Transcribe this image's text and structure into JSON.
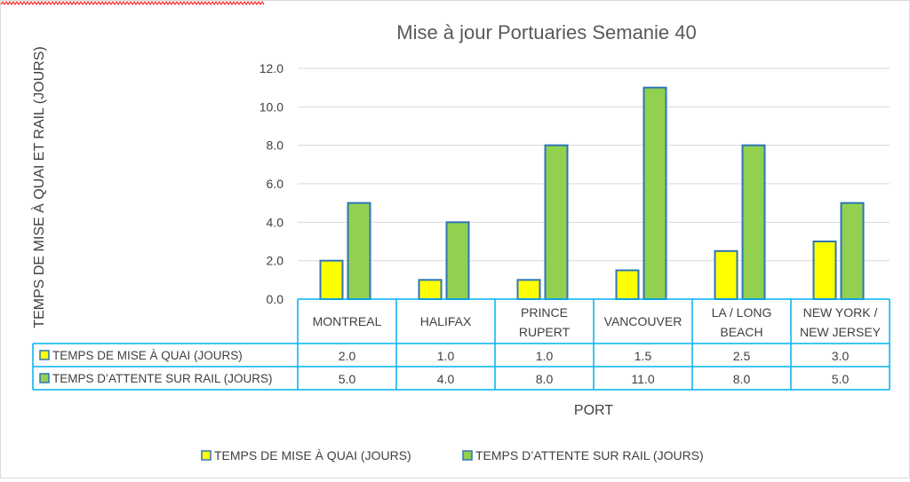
{
  "chart_data": {
    "type": "bar",
    "title": "Mise à jour Portuaries Semanie 40",
    "xlabel": "PORT",
    "ylabel": "TEMPS DE MISE À QUAI ET RAIL (JOURS)",
    "ylim": [
      0,
      12
    ],
    "ytick_labels": [
      "0.0",
      "2.0",
      "4.0",
      "6.0",
      "8.0",
      "10.0",
      "12.0"
    ],
    "categories": [
      [
        "MONTREAL"
      ],
      [
        "HALIFAX"
      ],
      [
        "PRINCE",
        "RUPERT"
      ],
      [
        "VANCOUVER"
      ],
      [
        "LA / LONG",
        "BEACH"
      ],
      [
        "NEW YORK /",
        "NEW JERSEY"
      ]
    ],
    "series": [
      {
        "name": "TEMPS DE MISE À QUAI (JOURS)",
        "color": "#ffff00",
        "values": [
          2.0,
          1.0,
          1.0,
          1.5,
          2.5,
          3.0
        ],
        "labels": [
          "2.0",
          "1.0",
          "1.0",
          "1.5",
          "2.5",
          "3.0"
        ]
      },
      {
        "name": "TEMPS  D’ATTENTE SUR RAIL (JOURS)",
        "color": "#92d050",
        "values": [
          5.0,
          4.0,
          8.0,
          11.0,
          8.0,
          5.0
        ],
        "labels": [
          "5.0",
          "4.0",
          "8.0",
          "11.0",
          "8.0",
          "5.0"
        ]
      }
    ],
    "grid": true,
    "data_table": true,
    "legend": "bottom",
    "colors": {
      "outline": "#2e75b6",
      "table_border": "#00b0f0",
      "grid": "#d9d9d9"
    }
  }
}
